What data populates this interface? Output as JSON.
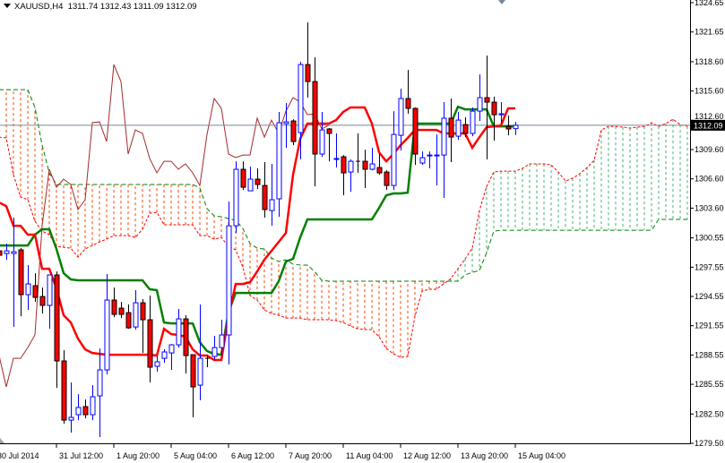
{
  "header": {
    "symbol": "XAUUSD,H4",
    "ohlc": "1311.74 1312.43 1311.09 1312.09",
    "menu_icon": "triangle-down-icon"
  },
  "colors": {
    "bull_candle": "#0000FF",
    "bear_candle_fill": "#FF0000",
    "bear_candle_outline": "#000000",
    "tenkan": "#FF0000",
    "kijun": "#008000",
    "senkou_a": "#FF0000",
    "senkou_b": "#008000",
    "kumo_down_hatch": "#FF4500",
    "kumo_up_hatch": "#3CB371",
    "chikou": "#A52A2A",
    "bid_line": "#778899",
    "price_label_bg": "#000000"
  },
  "chart_data": {
    "type": "candlestick",
    "indicator": "Ichimoku Kinko Hyo",
    "symbol": "XAUUSD",
    "timeframe": "H4",
    "ylim": [
      1279.5,
      1324.65
    ],
    "grid": false,
    "current_price": "1312.09",
    "y_ticks": [
      "1324.65",
      "1321.65",
      "1318.60",
      "1315.60",
      "1312.60",
      "1309.60",
      "1306.60",
      "1303.60",
      "1300.55",
      "1297.55",
      "1294.55",
      "1291.55",
      "1288.55",
      "1285.55",
      "1282.50",
      "1279.50"
    ],
    "x_ticks": [
      {
        "label": "30 Jul 2014",
        "candle": 0
      },
      {
        "label": "31 Jul 12:00",
        "candle": 8
      },
      {
        "label": "1 Aug 20:00",
        "candle": 16
      },
      {
        "label": "5 Aug 04:00",
        "candle": 24
      },
      {
        "label": "6 Aug 12:00",
        "candle": 32
      },
      {
        "label": "7 Aug 20:00",
        "candle": 40
      },
      {
        "label": "11 Aug 04:00",
        "candle": 48
      },
      {
        "label": "12 Aug 12:00",
        "candle": 56
      },
      {
        "label": "13 Aug 20:00",
        "candle": 64
      },
      {
        "label": "15 Aug 04:00",
        "candle": 72
      }
    ],
    "candles_ohlc": [
      [
        1299.22,
        1299.5,
        1298.31,
        1298.77
      ],
      [
        1298.95,
        1299.96,
        1298.31,
        1299.22
      ],
      [
        1298.95,
        1302.62,
        1291.42,
        1299.13
      ],
      [
        1299.32,
        1299.5,
        1292.52,
        1294.73
      ],
      [
        1294.73,
        1297.76,
        1293.17,
        1295.83
      ],
      [
        1295.65,
        1296.93,
        1293.99,
        1294.45
      ],
      [
        1294.54,
        1295.46,
        1292.8,
        1293.63
      ],
      [
        1293.63,
        1296.75,
        1291.24,
        1296.75
      ],
      [
        1296.75,
        1297.11,
        1285.18,
        1287.94
      ],
      [
        1287.94,
        1289.04,
        1281.51,
        1281.88
      ],
      [
        1281.88,
        1285.73,
        1280.59,
        1282.16
      ],
      [
        1282.43,
        1284.54,
        1281.88,
        1283.17
      ],
      [
        1283.26,
        1283.99,
        1282.06,
        1282.43
      ],
      [
        1282.43,
        1285.46,
        1281.88,
        1284.27
      ],
      [
        1284.36,
        1289.22,
        1280.14,
        1287.02
      ],
      [
        1287.02,
        1296.84,
        1286.56,
        1294.18
      ],
      [
        1294.18,
        1295.46,
        1292.43,
        1292.71
      ],
      [
        1293.35,
        1293.99,
        1292.34,
        1292.71
      ],
      [
        1292.89,
        1293.72,
        1291.24,
        1291.33
      ],
      [
        1291.42,
        1295.19,
        1291.15,
        1293.9
      ],
      [
        1293.9,
        1294.27,
        1288.76,
        1292.16
      ],
      [
        1292.16,
        1294.64,
        1285.73,
        1287.3
      ],
      [
        1287.39,
        1288.4,
        1286.84,
        1287.85
      ],
      [
        1288.21,
        1289.13,
        1287.75,
        1288.86
      ],
      [
        1288.76,
        1289.68,
        1287.02,
        1289.59
      ],
      [
        1289.59,
        1293.26,
        1289.31,
        1292.25
      ],
      [
        1292.25,
        1292.62,
        1286.65,
        1288.49
      ],
      [
        1288.58,
        1288.58,
        1282.16,
        1285.28
      ],
      [
        1285.46,
        1293.72,
        1283.9,
        1288.21
      ],
      [
        1288.21,
        1288.49,
        1287.3,
        1288.21
      ],
      [
        1288.4,
        1290.51,
        1288.03,
        1289.31
      ],
      [
        1289.31,
        1292.16,
        1288.49,
        1290.6
      ],
      [
        1290.6,
        1304.27,
        1287.57,
        1301.79
      ],
      [
        1301.79,
        1308.4,
        1301.06,
        1307.58
      ],
      [
        1307.58,
        1308.4,
        1305.46,
        1305.74
      ],
      [
        1305.37,
        1307.85,
        1305.37,
        1306.57
      ],
      [
        1306.57,
        1307.67,
        1305.56,
        1306.02
      ],
      [
        1305.92,
        1308.31,
        1302.62,
        1303.45
      ],
      [
        1303.35,
        1308.13,
        1301.79,
        1304.46
      ],
      [
        1304.55,
        1313.45,
        1302.71,
        1312.35
      ],
      [
        1312.26,
        1314.37,
        1309.78,
        1312.44
      ],
      [
        1312.53,
        1312.71,
        1310.05,
        1310.42
      ],
      [
        1311.34,
        1318.59,
        1308.59,
        1318.31
      ],
      [
        1318.31,
        1322.63,
        1314.92,
        1316.57
      ],
      [
        1316.57,
        1319.05,
        1305.83,
        1309.14
      ],
      [
        1309.14,
        1313.45,
        1308.86,
        1311.61
      ],
      [
        1311.71,
        1311.8,
        1308.4,
        1311.25
      ],
      [
        1308.59,
        1311.25,
        1307.76,
        1308.68
      ],
      [
        1308.86,
        1309.04,
        1304.91,
        1307.21
      ],
      [
        1307.3,
        1308.59,
        1305.28,
        1308.4
      ],
      [
        1308.4,
        1311.25,
        1307.21,
        1308.4
      ],
      [
        1308.4,
        1309.59,
        1305.65,
        1307.58
      ],
      [
        1307.58,
        1309.78,
        1307.48,
        1308.13
      ],
      [
        1307.76,
        1309.14,
        1307.03,
        1307.21
      ],
      [
        1307.3,
        1307.48,
        1305.46,
        1305.92
      ],
      [
        1305.92,
        1313.54,
        1305.46,
        1311.15
      ],
      [
        1311.06,
        1315.83,
        1309.5,
        1314.83
      ],
      [
        1314.83,
        1317.76,
        1313.27,
        1313.82
      ],
      [
        1313.82,
        1313.91,
        1308.03,
        1309.14
      ],
      [
        1308.22,
        1309.41,
        1308.03,
        1308.77
      ],
      [
        1308.95,
        1309.41,
        1307.67,
        1309.04
      ],
      [
        1308.95,
        1311.15,
        1305.92,
        1309.04
      ],
      [
        1309.04,
        1314.46,
        1304.64,
        1312.81
      ],
      [
        1312.81,
        1314.83,
        1308.31,
        1310.88
      ],
      [
        1310.97,
        1313.45,
        1310.6,
        1312.62
      ],
      [
        1312.16,
        1312.9,
        1310.88,
        1311.25
      ],
      [
        1311.25,
        1313.91,
        1310.97,
        1313.54
      ],
      [
        1313.54,
        1317.3,
        1312.53,
        1314.92
      ],
      [
        1314.92,
        1319.23,
        1308.59,
        1314.46
      ],
      [
        1314.46,
        1315.01,
        1310.51,
        1313.17
      ],
      [
        1313.17,
        1314.46,
        1312.26,
        1313.27
      ],
      [
        1311.98,
        1313.08,
        1311.06,
        1311.71
      ],
      [
        1311.74,
        1312.43,
        1311.09,
        1312.09
      ]
    ],
    "tenkan_sen": [
      1304.18,
      1303.81,
      1301.79,
      1301.79,
      1300.88,
      1300.88,
      1297.39,
      1297.39,
      1295.37,
      1292.62,
      1291.88,
      1290.23,
      1289.13,
      1288.76,
      1288.67,
      1288.58,
      1288.58,
      1288.58,
      1288.58,
      1288.58,
      1288.58,
      1288.58,
      1288.49,
      1291.24,
      1290.69,
      1290.6,
      1290.41,
      1289.13,
      1288.49,
      1288.49,
      1288.03,
      1288.03,
      1292.52,
      1295.83,
      1295.83,
      1296.01,
      1297.11,
      1298.31,
      1299.22,
      1300.14,
      1301.06,
      1307.02,
      1310.7,
      1312.26,
      1312.26,
      1312.26,
      1312.26,
      1312.62,
      1313.45,
      1313.91,
      1313.91,
      1313.91,
      1312.26,
      1309.32,
      1308.4,
      1309.14,
      1310.05,
      1310.79,
      1311.61,
      1311.61,
      1311.61,
      1311.61,
      1311.25,
      1311.25,
      1311.25,
      1311.25,
      1309.78,
      1310.88,
      1311.89,
      1311.98,
      1312.07,
      1313.82,
      1313.82
    ],
    "kijun_sen": [
      1299.77,
      1299.77,
      1299.77,
      1299.77,
      1299.77,
      1300.88,
      1301.43,
      1301.43,
      1299.41,
      1296.93,
      1296.29,
      1296.2,
      1296.2,
      1296.2,
      1296.2,
      1296.2,
      1296.2,
      1296.2,
      1296.2,
      1296.2,
      1296.2,
      1295.28,
      1295.19,
      1291.88,
      1291.79,
      1291.79,
      1291.79,
      1291.79,
      1289.86,
      1288.95,
      1288.67,
      1288.58,
      1292.98,
      1294.91,
      1294.91,
      1294.91,
      1294.91,
      1294.91,
      1294.91,
      1296.11,
      1298.12,
      1298.4,
      1300.6,
      1302.44,
      1302.44,
      1302.44,
      1302.44,
      1302.44,
      1302.44,
      1302.44,
      1302.44,
      1302.44,
      1302.44,
      1303.63,
      1304.91,
      1305.1,
      1305.1,
      1305.19,
      1312.26,
      1312.26,
      1312.26,
      1312.26,
      1312.26,
      1312.26,
      1313.99,
      1313.72,
      1313.72,
      1313.72,
      1313.72,
      1311.98,
      1311.98,
      1311.98,
      1311.98
    ],
    "senkou_span_a": [
      1310.88,
      1310.79,
      1307.02,
      1304.73,
      1304.46,
      1302.25,
      1301.24,
      1300.88,
      1299.68,
      1299.59,
      1299.5,
      1298.58,
      1299.41,
      1299.77,
      1300.14,
      1300.42,
      1300.78,
      1300.78,
      1300.78,
      1300.6,
      1301.43,
      1303.08,
      1303.17,
      1301.89,
      1301.89,
      1301.89,
      1301.89,
      1301.89,
      1300.78,
      1300.78,
      1300.42,
      1300.6,
      1299.68,
      1299.32,
      1297.57,
      1294.64,
      1294.18,
      1293.17,
      1292.8,
      1292.62,
      1292.34,
      1292.34,
      1292.34,
      1292.16,
      1292.16,
      1292.16,
      1292.16,
      1292.07,
      1291.88,
      1291.52,
      1291.24,
      1291.15,
      1291.15,
      1290.41,
      1289.22,
      1288.67,
      1288.3,
      1288.4,
      1292.52,
      1295.1,
      1295.28,
      1295.28,
      1295.83,
      1296.38,
      1297.39,
      1298.4,
      1299.5,
      1303.35,
      1305.83,
      1307.3,
      1307.39,
      1307.39,
      1307.39,
      1307.67,
      1308.13,
      1308.13,
      1308.13,
      1308.03,
      1307.3,
      1306.38,
      1306.66,
      1307.12,
      1307.76,
      1308.49,
      1311.61,
      1311.98,
      1311.98,
      1311.89,
      1311.8,
      1311.89,
      1311.98,
      1312.35,
      1311.98,
      1312.26,
      1312.71,
      1312.16,
      1311.98
    ],
    "senkou_span_b": [
      1315.74,
      1315.74,
      1315.74,
      1315.74,
      1315.74,
      1313.91,
      1310.05,
      1307.21,
      1306.02,
      1306.02,
      1306.02,
      1306.02,
      1306.02,
      1306.02,
      1306.02,
      1306.02,
      1306.02,
      1306.02,
      1306.02,
      1306.02,
      1306.02,
      1306.02,
      1306.02,
      1306.02,
      1306.02,
      1306.02,
      1306.02,
      1306.02,
      1305.65,
      1303.54,
      1302.81,
      1302.71,
      1302.53,
      1302.34,
      1301.52,
      1299.96,
      1299.5,
      1299.41,
      1298.49,
      1298.12,
      1298.31,
      1297.85,
      1297.76,
      1297.76,
      1297.11,
      1296.2,
      1296.11,
      1296.11,
      1296.11,
      1296.11,
      1296.11,
      1296.11,
      1296.11,
      1296.11,
      1296.11,
      1296.11,
      1296.11,
      1296.11,
      1296.11,
      1296.11,
      1296.11,
      1296.11,
      1296.11,
      1296.11,
      1296.11,
      1296.75,
      1297.02,
      1297.21,
      1299.04,
      1301.24,
      1301.33,
      1301.33,
      1301.33,
      1301.33,
      1301.33,
      1301.33,
      1301.33,
      1301.33,
      1301.33,
      1301.33,
      1301.33,
      1301.33,
      1301.33,
      1301.33,
      1301.33,
      1301.33,
      1301.33,
      1301.33,
      1301.33,
      1301.33,
      1301.33,
      1301.33,
      1302.44,
      1302.44,
      1302.44,
      1302.44,
      1302.44
    ]
  }
}
